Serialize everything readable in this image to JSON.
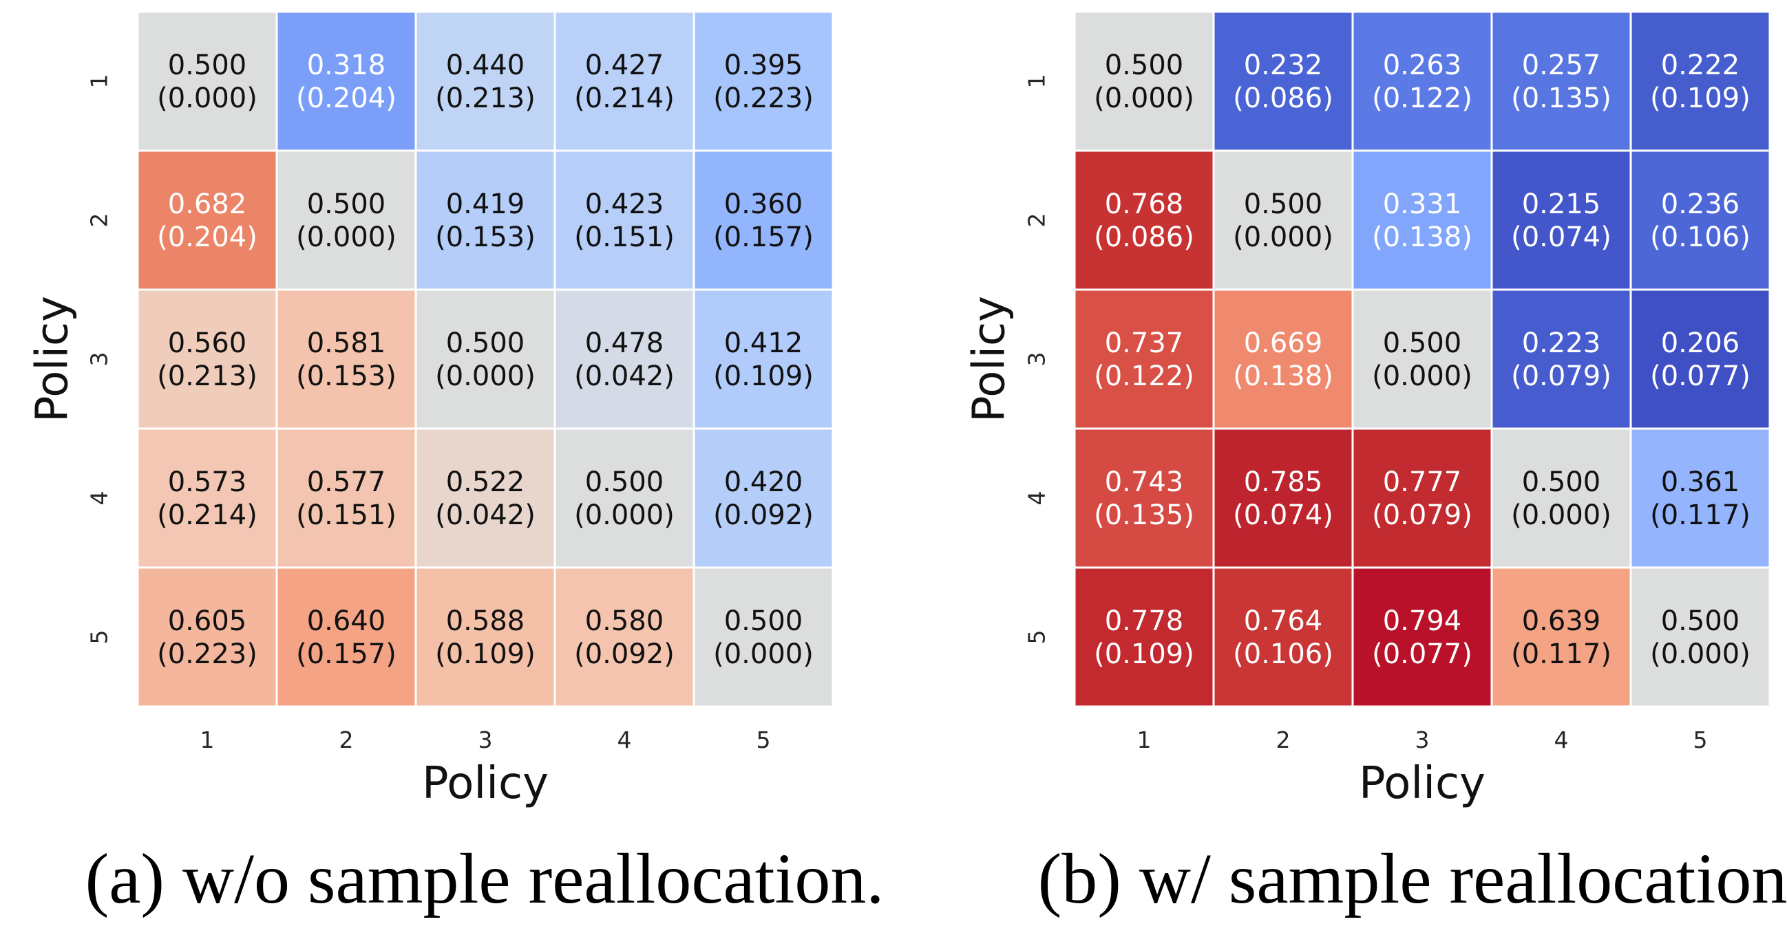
{
  "chart_data": [
    {
      "type": "heatmap",
      "caption": "(a) w/o sample reallocation.",
      "xlabel": "Policy",
      "ylabel": "Policy",
      "x_ticks": [
        "1",
        "2",
        "3",
        "4",
        "5"
      ],
      "y_ticks": [
        "1",
        "2",
        "3",
        "4",
        "5"
      ],
      "colormap": "coolwarm",
      "vmin": 0.2,
      "vmax": 0.8,
      "values": [
        [
          0.5,
          0.318,
          0.44,
          0.427,
          0.395
        ],
        [
          0.682,
          0.5,
          0.419,
          0.423,
          0.36
        ],
        [
          0.56,
          0.581,
          0.5,
          0.478,
          0.412
        ],
        [
          0.573,
          0.577,
          0.522,
          0.5,
          0.42
        ],
        [
          0.605,
          0.64,
          0.588,
          0.58,
          0.5
        ]
      ],
      "std": [
        [
          0.0,
          0.204,
          0.213,
          0.214,
          0.223
        ],
        [
          0.204,
          0.0,
          0.153,
          0.151,
          0.157
        ],
        [
          0.213,
          0.153,
          0.0,
          0.042,
          0.109
        ],
        [
          0.214,
          0.151,
          0.042,
          0.0,
          0.092
        ],
        [
          0.223,
          0.157,
          0.109,
          0.092,
          0.0
        ]
      ]
    },
    {
      "type": "heatmap",
      "caption": "(b) w/ sample reallocation.",
      "xlabel": "Policy",
      "ylabel": "Policy",
      "x_ticks": [
        "1",
        "2",
        "3",
        "4",
        "5"
      ],
      "y_ticks": [
        "1",
        "2",
        "3",
        "4",
        "5"
      ],
      "colormap": "coolwarm",
      "vmin": 0.2,
      "vmax": 0.8,
      "values": [
        [
          0.5,
          0.232,
          0.263,
          0.257,
          0.222
        ],
        [
          0.768,
          0.5,
          0.331,
          0.215,
          0.236
        ],
        [
          0.737,
          0.669,
          0.5,
          0.223,
          0.206
        ],
        [
          0.743,
          0.785,
          0.777,
          0.5,
          0.361
        ],
        [
          0.778,
          0.764,
          0.794,
          0.639,
          0.5
        ]
      ],
      "std": [
        [
          0.0,
          0.086,
          0.122,
          0.135,
          0.109
        ],
        [
          0.086,
          0.0,
          0.138,
          0.074,
          0.106
        ],
        [
          0.122,
          0.138,
          0.0,
          0.079,
          0.077
        ],
        [
          0.135,
          0.074,
          0.079,
          0.0,
          0.117
        ],
        [
          0.109,
          0.106,
          0.077,
          0.117,
          0.0
        ]
      ]
    }
  ]
}
